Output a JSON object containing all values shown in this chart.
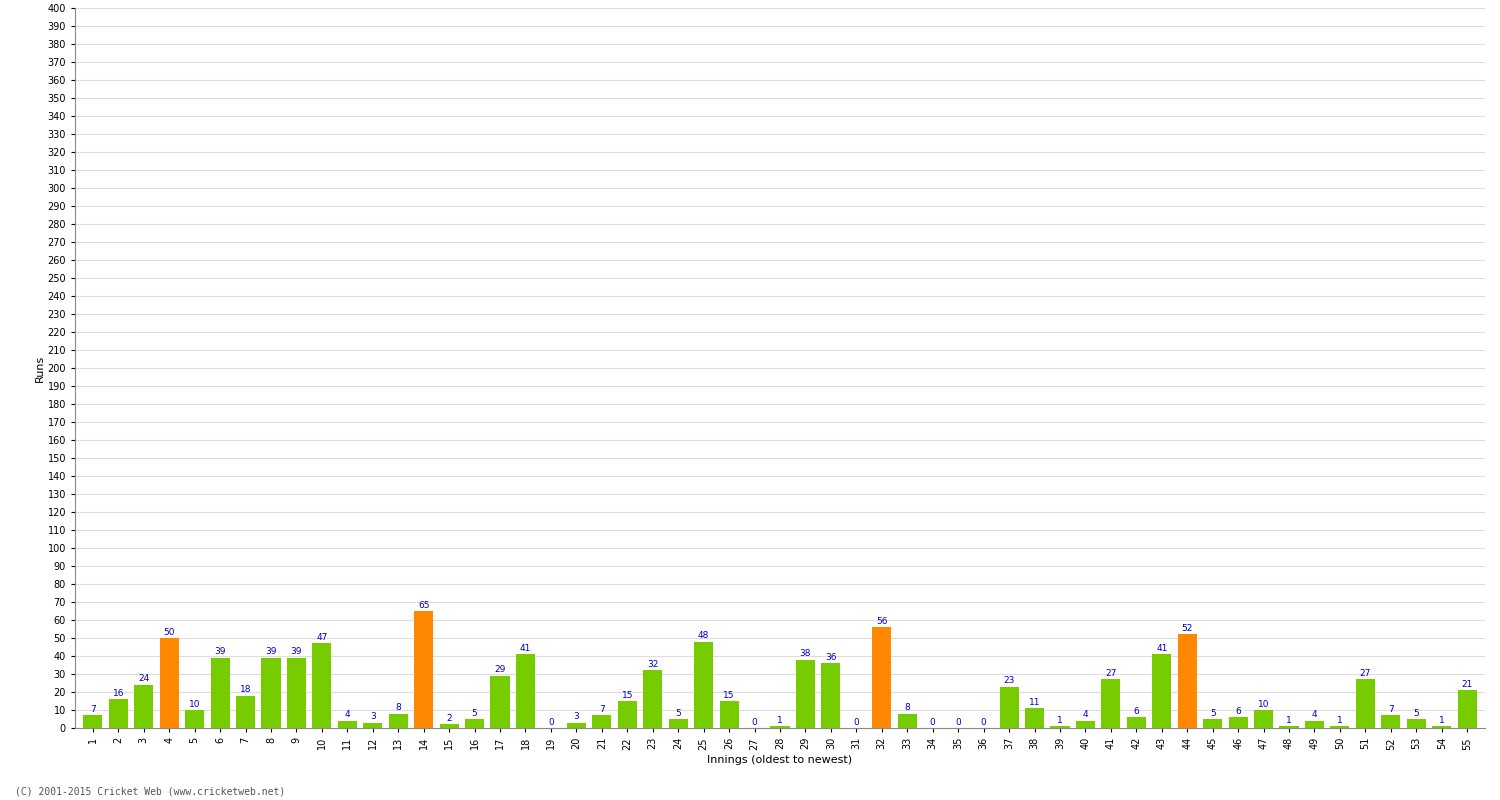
{
  "title": "",
  "xlabel": "Innings (oldest to newest)",
  "ylabel": "Runs",
  "background_color": "#ffffff",
  "grid_color": "#dddddd",
  "bar_values": [
    7,
    16,
    24,
    50,
    10,
    39,
    18,
    39,
    39,
    47,
    4,
    3,
    8,
    65,
    2,
    5,
    29,
    41,
    0,
    3,
    7,
    15,
    32,
    5,
    48,
    15,
    0,
    1,
    38,
    36,
    0,
    56,
    8,
    0,
    0,
    0,
    23,
    11,
    1,
    4,
    27,
    6,
    41,
    52,
    5,
    6,
    10,
    1,
    4,
    1,
    27,
    7,
    5,
    1,
    21
  ],
  "bar_colors": [
    "#77cc00",
    "#77cc00",
    "#77cc00",
    "#ff8800",
    "#77cc00",
    "#77cc00",
    "#77cc00",
    "#77cc00",
    "#77cc00",
    "#77cc00",
    "#77cc00",
    "#77cc00",
    "#77cc00",
    "#ff8800",
    "#77cc00",
    "#77cc00",
    "#77cc00",
    "#77cc00",
    "#77cc00",
    "#77cc00",
    "#77cc00",
    "#77cc00",
    "#77cc00",
    "#77cc00",
    "#77cc00",
    "#77cc00",
    "#77cc00",
    "#77cc00",
    "#77cc00",
    "#77cc00",
    "#77cc00",
    "#ff8800",
    "#77cc00",
    "#77cc00",
    "#77cc00",
    "#77cc00",
    "#77cc00",
    "#77cc00",
    "#77cc00",
    "#77cc00",
    "#77cc00",
    "#77cc00",
    "#77cc00",
    "#ff8800",
    "#77cc00",
    "#77cc00",
    "#77cc00",
    "#77cc00",
    "#77cc00",
    "#77cc00",
    "#77cc00",
    "#77cc00",
    "#77cc00",
    "#77cc00",
    "#77cc00"
  ],
  "x_labels": [
    "1",
    "2",
    "3",
    "4",
    "5",
    "6",
    "7",
    "8",
    "9",
    "10",
    "11",
    "12",
    "13",
    "14",
    "15",
    "16",
    "17",
    "18",
    "19",
    "20",
    "21",
    "22",
    "23",
    "24",
    "25",
    "26",
    "27",
    "28",
    "29",
    "30",
    "31",
    "32",
    "33",
    "34",
    "35",
    "36",
    "37",
    "38",
    "39",
    "40",
    "41",
    "42",
    "43",
    "44",
    "45",
    "46",
    "47",
    "48",
    "49",
    "50",
    "51",
    "52",
    "53",
    "54",
    "55"
  ],
  "ylim": [
    0,
    400
  ],
  "ytick_step": 10,
  "axis_fontsize": 8,
  "tick_fontsize": 7,
  "value_fontsize": 6.5,
  "footer": "(C) 2001-2015 Cricket Web (www.cricketweb.net)"
}
